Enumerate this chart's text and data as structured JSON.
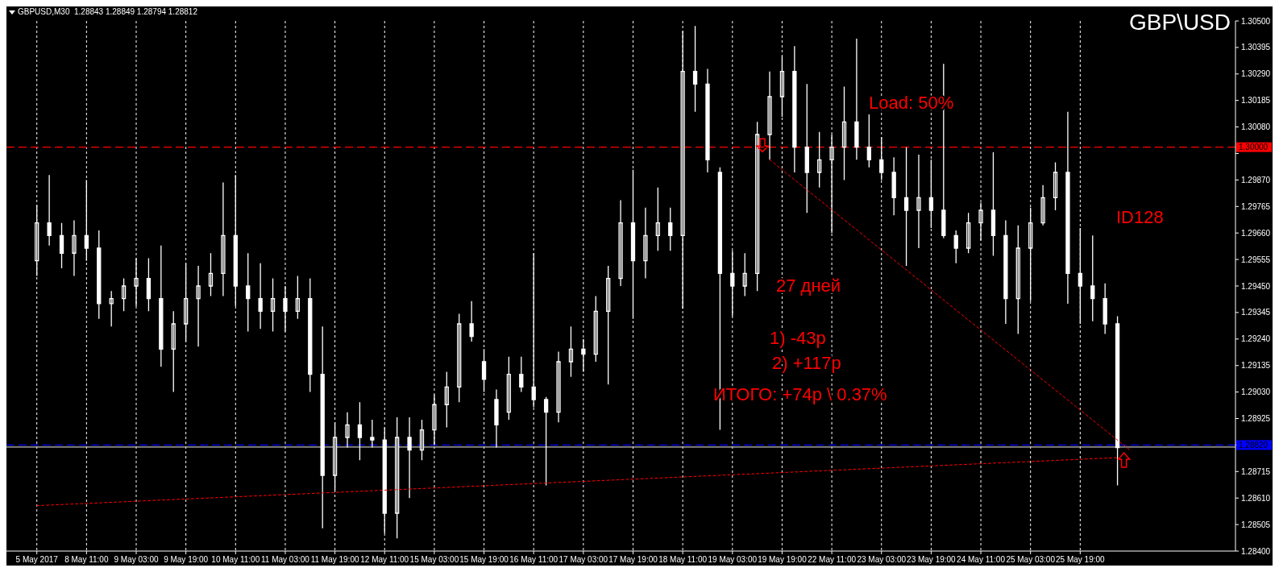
{
  "chart_data": {
    "type": "candlestick",
    "title": "GBPUSD,M30  1.28843 1.28849 1.28794 1.28812",
    "subtitle": "GBP\\USD",
    "annotations": [
      "Load: 50%",
      "ID128",
      "27 дней",
      "1) -43p",
      "2) +117p",
      "ИТОГО: +74p \\ 0.37%"
    ],
    "categories": [
      "5 May 2017",
      null,
      null,
      null,
      "8 May 11:00",
      null,
      null,
      null,
      "9 May 03:00",
      null,
      null,
      null,
      "9 May 19:00",
      null,
      null,
      null,
      "10 May 11:00",
      null,
      null,
      null,
      "11 May 03:00",
      null,
      null,
      null,
      "11 May 19:00",
      null,
      null,
      null,
      "12 May 11:00",
      null,
      null,
      null,
      "15 May 03:00",
      null,
      null,
      null,
      "15 May 19:00",
      null,
      null,
      null,
      "16 May 11:00",
      null,
      null,
      null,
      "17 May 03:00",
      null,
      null,
      null,
      "17 May 19:00",
      null,
      null,
      null,
      "18 May 11:00",
      null,
      null,
      null,
      "19 May 03:00",
      null,
      null,
      null,
      "19 May 19:00",
      null,
      null,
      null,
      "22 May 11:00",
      null,
      null,
      null,
      "23 May 03:00",
      null,
      null,
      null,
      "23 May 19:00",
      null,
      null,
      null,
      "24 May 11:00",
      null,
      null,
      null,
      "25 May 03:00",
      null,
      null,
      null,
      "25 May 19:00",
      null,
      null,
      null,
      null,
      null,
      null,
      null,
      null,
      null,
      null,
      null,
      null
    ],
    "color": "#ffffff",
    "ohlc": [
      [
        1.2955,
        1.2977,
        1.2949,
        1.297
      ],
      [
        1.297,
        1.2989,
        1.2961,
        1.2965
      ],
      [
        1.2965,
        1.297,
        1.2952,
        1.2958
      ],
      [
        1.2958,
        1.2971,
        1.2949,
        1.2965
      ],
      [
        1.2965,
        1.2987,
        1.2955,
        1.296
      ],
      [
        1.296,
        1.2967,
        1.2932,
        1.2938
      ],
      [
        1.2938,
        1.2943,
        1.2929,
        1.294
      ],
      [
        1.294,
        1.2948,
        1.2935,
        1.2945
      ],
      [
        1.2945,
        1.2956,
        1.2937,
        1.2948
      ],
      [
        1.2948,
        1.2956,
        1.2935,
        1.294
      ],
      [
        1.294,
        1.2961,
        1.2913,
        1.292
      ],
      [
        1.292,
        1.2935,
        1.2903,
        1.293
      ],
      [
        1.293,
        1.2954,
        1.2923,
        1.294
      ],
      [
        1.294,
        1.2953,
        1.2921,
        1.2945
      ],
      [
        1.2945,
        1.2958,
        1.2941,
        1.295
      ],
      [
        1.295,
        1.2986,
        1.2941,
        1.2965
      ],
      [
        1.2965,
        1.2989,
        1.2937,
        1.2945
      ],
      [
        1.2945,
        1.2958,
        1.2927,
        1.294
      ],
      [
        1.294,
        1.2954,
        1.2928,
        1.2935
      ],
      [
        1.2935,
        1.2948,
        1.2927,
        1.294
      ],
      [
        1.294,
        1.2945,
        1.2927,
        1.2935
      ],
      [
        1.2935,
        1.2949,
        1.2932,
        1.294
      ],
      [
        1.294,
        1.2948,
        1.2903,
        1.291
      ],
      [
        1.291,
        1.2929,
        1.2849,
        1.287
      ],
      [
        1.287,
        1.2891,
        1.2864,
        1.2885
      ],
      [
        1.2885,
        1.2895,
        1.2881,
        1.289
      ],
      [
        1.289,
        1.2899,
        1.2876,
        1.2885
      ],
      [
        1.2885,
        1.2892,
        1.2881,
        1.2884
      ],
      [
        1.2884,
        1.2889,
        1.2847,
        1.2855
      ],
      [
        1.2855,
        1.2893,
        1.2845,
        1.2885
      ],
      [
        1.2885,
        1.2893,
        1.2861,
        1.288
      ],
      [
        1.288,
        1.2892,
        1.2876,
        1.2888
      ],
      [
        1.2888,
        1.2902,
        1.2882,
        1.2898
      ],
      [
        1.2898,
        1.2911,
        1.2889,
        1.2905
      ],
      [
        1.2905,
        1.2934,
        1.2899,
        1.293
      ],
      [
        1.293,
        1.2939,
        1.2923,
        1.2925
      ],
      [
        1.2915,
        1.292,
        1.2903,
        1.2908
      ],
      [
        1.29,
        1.2904,
        1.2881,
        1.289
      ],
      [
        1.2895,
        1.2917,
        1.2892,
        1.291
      ],
      [
        1.291,
        1.2917,
        1.2903,
        1.2905
      ],
      [
        1.2905,
        1.2958,
        1.2897,
        1.29
      ],
      [
        1.29,
        1.2901,
        1.2866,
        1.2895
      ],
      [
        1.2895,
        1.2919,
        1.2891,
        1.2915
      ],
      [
        1.2915,
        1.2929,
        1.2909,
        1.292
      ],
      [
        1.292,
        1.2924,
        1.2911,
        1.2918
      ],
      [
        1.2918,
        1.2941,
        1.2915,
        1.2935
      ],
      [
        1.2935,
        1.2953,
        1.2906,
        1.2948
      ],
      [
        1.2948,
        1.2979,
        1.2945,
        1.297
      ],
      [
        1.297,
        1.2991,
        1.2932,
        1.2955
      ],
      [
        1.2955,
        1.2976,
        1.2948,
        1.2965
      ],
      [
        1.2965,
        1.2984,
        1.2959,
        1.297
      ],
      [
        1.297,
        1.2976,
        1.2959,
        1.2965
      ],
      [
        1.2965,
        1.3046,
        1.2936,
        1.303
      ],
      [
        1.303,
        1.3048,
        1.3014,
        1.3025
      ],
      [
        1.3025,
        1.3031,
        1.299,
        1.2995
      ],
      [
        1.299,
        1.2992,
        1.2888,
        1.295
      ],
      [
        1.295,
        1.2959,
        1.2933,
        1.2945
      ],
      [
        1.2945,
        1.2958,
        1.2941,
        1.295
      ],
      [
        1.295,
        1.301,
        1.2943,
        1.3005
      ],
      [
        1.3005,
        1.303,
        1.2995,
        1.302
      ],
      [
        1.302,
        1.3036,
        1.3012,
        1.303
      ],
      [
        1.303,
        1.304,
        1.299,
        1.3
      ],
      [
        1.3,
        1.3025,
        1.2974,
        1.299
      ],
      [
        1.299,
        1.3006,
        1.2984,
        1.2995
      ],
      [
        1.2995,
        1.3005,
        1.2966,
        1.3
      ],
      [
        1.3,
        1.3024,
        1.2987,
        1.301
      ],
      [
        1.301,
        1.3043,
        1.2995,
        1.3
      ],
      [
        1.3,
        1.3013,
        1.2992,
        1.2995
      ],
      [
        1.2995,
        1.3004,
        1.2987,
        1.299
      ],
      [
        1.299,
        1.2996,
        1.2973,
        1.298
      ],
      [
        1.298,
        1.3,
        1.2953,
        1.2975
      ],
      [
        1.2975,
        1.2997,
        1.296,
        1.298
      ],
      [
        1.298,
        1.2995,
        1.2968,
        1.2975
      ],
      [
        1.2975,
        1.3033,
        1.2964,
        1.2965
      ],
      [
        1.2965,
        1.2967,
        1.2954,
        1.296
      ],
      [
        1.296,
        1.2974,
        1.2958,
        1.297
      ],
      [
        1.297,
        1.2978,
        1.2963,
        1.2975
      ],
      [
        1.2975,
        1.2998,
        1.2957,
        1.2965
      ],
      [
        1.2965,
        1.2971,
        1.293,
        1.294
      ],
      [
        1.294,
        1.2969,
        1.2926,
        1.296
      ],
      [
        1.296,
        1.2976,
        1.2939,
        1.297
      ],
      [
        1.297,
        1.2985,
        1.2969,
        1.298
      ],
      [
        1.298,
        1.2994,
        1.2975,
        1.299
      ],
      [
        1.299,
        1.3014,
        1.2938,
        1.295
      ],
      [
        1.295,
        1.2968,
        1.293,
        1.2945
      ],
      [
        1.2945,
        1.2965,
        1.2931,
        1.294
      ],
      [
        1.294,
        1.2946,
        1.2926,
        1.293
      ],
      [
        1.293,
        1.2933,
        1.2866,
        1.2881
      ],
      null,
      null,
      null,
      null,
      null,
      null,
      null,
      null,
      null
    ],
    "series": [
      {
        "type": "line",
        "values": [
          null,
          null,
          null,
          null,
          null,
          null,
          null,
          null,
          null,
          null,
          null,
          null,
          null,
          null,
          null,
          null,
          null,
          null,
          null,
          null,
          null,
          null,
          null,
          null,
          null,
          null,
          null,
          null,
          null,
          null,
          null,
          null,
          null,
          null,
          null,
          null,
          null,
          null,
          null,
          null,
          null,
          null,
          null,
          null,
          null,
          null,
          null,
          null,
          null,
          null,
          null,
          null,
          null,
          null,
          null,
          null,
          null,
          null,
          null,
          1.2995,
          null,
          null,
          null,
          null,
          null,
          null,
          null,
          null,
          null,
          null,
          null,
          null,
          null,
          null,
          null,
          null,
          null,
          null,
          null,
          null,
          null,
          null,
          null,
          null,
          null,
          null,
          null,
          null,
          1.288,
          null,
          null,
          null,
          null,
          null,
          null,
          null,
          null
        ],
        "color": "#ff0000",
        "line_style": "dotted"
      },
      {
        "type": "line",
        "values": [
          1.2858,
          null,
          null,
          null,
          null,
          null,
          null,
          null,
          null,
          null,
          null,
          null,
          null,
          null,
          null,
          null,
          null,
          null,
          null,
          null,
          null,
          null,
          null,
          null,
          null,
          null,
          null,
          null,
          null,
          null,
          null,
          null,
          null,
          null,
          null,
          null,
          null,
          null,
          null,
          null,
          null,
          null,
          null,
          null,
          null,
          null,
          null,
          null,
          null,
          null,
          null,
          null,
          null,
          null,
          null,
          null,
          null,
          null,
          null,
          null,
          null,
          null,
          null,
          null,
          null,
          null,
          null,
          null,
          null,
          null,
          null,
          null,
          null,
          null,
          null,
          null,
          null,
          null,
          null,
          null,
          null,
          null,
          null,
          null,
          null,
          null,
          null,
          1.2877,
          null,
          null,
          null,
          null,
          null,
          null,
          null,
          null,
          null
        ],
        "color": "#ff0000",
        "line_style": "dotted"
      }
    ],
    "ylim": [
      1.284,
      1.305
    ],
    "yticks": [
      {
        "value": 1.305,
        "label": "1.30500"
      },
      {
        "value": 1.30395,
        "label": "1.30395"
      },
      {
        "value": 1.3029,
        "label": "1.30290"
      },
      {
        "value": 1.30185,
        "label": "1.30185"
      },
      {
        "value": 1.3008,
        "label": "1.30080"
      },
      {
        "value": 1.29975,
        "label": null
      },
      {
        "value": 1.2987,
        "label": "1.29870"
      },
      {
        "value": 1.29765,
        "label": "1.29765"
      },
      {
        "value": 1.2966,
        "label": "1.29660"
      },
      {
        "value": 1.29555,
        "label": "1.29555"
      },
      {
        "value": 1.2945,
        "label": "1.29450"
      },
      {
        "value": 1.29345,
        "label": "1.29345"
      },
      {
        "value": 1.2924,
        "label": "1.29240"
      },
      {
        "value": 1.29135,
        "label": "1.29135"
      },
      {
        "value": 1.2903,
        "label": "1.29030"
      },
      {
        "value": 1.28925,
        "label": "1.28925"
      },
      {
        "value": 1.2882,
        "label": null
      },
      {
        "value": 1.28715,
        "label": "1.28715"
      },
      {
        "value": 1.2861,
        "label": "1.28610"
      },
      {
        "value": 1.28505,
        "label": "1.28505"
      },
      {
        "value": 1.284,
        "label": "1.28400"
      }
    ],
    "ref_lines": [
      {
        "axis": "y",
        "value": 1.3,
        "label": "1.30000",
        "color": "#ff0000",
        "line_style": "dashed"
      },
      {
        "axis": "y",
        "value": 1.2882,
        "label": "1.28820",
        "color": "#0000ff",
        "line_style": "dashed"
      },
      {
        "axis": "y",
        "value": 1.28812,
        "color": "#c0c0c0",
        "line_style": "solid"
      }
    ],
    "grid": "x"
  }
}
